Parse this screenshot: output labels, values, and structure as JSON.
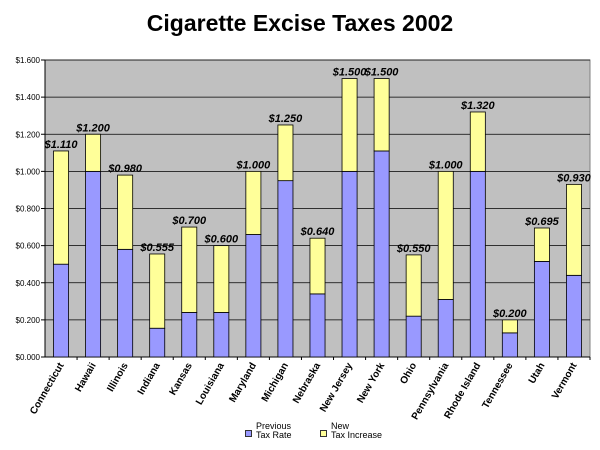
{
  "chart_data": {
    "type": "bar",
    "stacked": true,
    "title": "Cigarette Excise Taxes 2002",
    "xlabel": "",
    "ylabel": "",
    "ylim": [
      0,
      1.6
    ],
    "yticks": [
      "$0.000",
      "$0.200",
      "$0.400",
      "$0.600",
      "$0.800",
      "$1.000",
      "$1.200",
      "$1.400",
      "$1.600"
    ],
    "ytick_values": [
      0,
      0.2,
      0.4,
      0.6,
      0.8,
      1.0,
      1.2,
      1.4,
      1.6
    ],
    "grid": true,
    "legend_position": "bottom",
    "categories": [
      "Connecticut",
      "Hawaii",
      "Illinois",
      "Indiana",
      "Kansas",
      "Louisiana",
      "Maryland",
      "Michigan",
      "Nebraska",
      "New Jersey",
      "New York",
      "Ohio",
      "Pennsylvania",
      "Rhode Island",
      "Tennessee",
      "Utah",
      "Vermont"
    ],
    "series": [
      {
        "name": "Previous Tax Rate",
        "values": [
          0.5,
          1.0,
          0.58,
          0.155,
          0.24,
          0.24,
          0.66,
          0.95,
          0.34,
          1.0,
          1.11,
          0.22,
          0.31,
          1.0,
          0.13,
          0.515,
          0.44
        ]
      },
      {
        "name": "New Tax Increase",
        "values": [
          0.61,
          0.2,
          0.4,
          0.4,
          0.46,
          0.36,
          0.34,
          0.3,
          0.3,
          0.5,
          0.39,
          0.33,
          0.69,
          0.32,
          0.07,
          0.18,
          0.49
        ]
      }
    ],
    "totals_labels": [
      "$1.110",
      "$1.200",
      "$0.980",
      "$0.555",
      "$0.700",
      "$0.600",
      "$1.000",
      "$1.250",
      "$0.640",
      "$1.500",
      "$1.500",
      "$0.550",
      "$1.000",
      "$1.320",
      "$0.200",
      "$0.695",
      "$0.930"
    ],
    "legend": {
      "previous_line1": "Previous",
      "previous_line2": "Tax Rate",
      "new_line1": "New",
      "new_line2": "Tax Increase"
    },
    "colors": {
      "plot_background": "#c0c0c0",
      "previous": "#9999ff",
      "new": "#ffff99",
      "bar_border": "#000000",
      "gridline": "#000000"
    }
  }
}
